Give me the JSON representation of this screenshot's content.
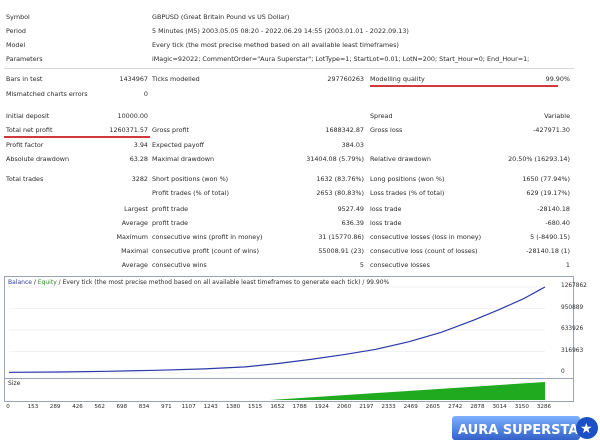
{
  "rows": [
    {
      "label": "Symbol",
      "value": "GBPUSD (Great Britain Pound vs US Dollar)"
    },
    {
      "label": "Period",
      "value": "5 Minutes (M5) 2003.05.05 08:20 - 2022.06.29 14:55 (2003.01.01 - 2022.09.13)"
    },
    {
      "label": "Model",
      "value": "Every tick (the most precise method based on all available least timeframes)"
    },
    {
      "label": "Parameters",
      "value": "iMagic=92022; CommentOrder=\"Aura Superstar\"; LotType=1; StartLot=0.01; LotN=200; Start_Hour=0; End_Hour=1;"
    }
  ],
  "stats": {
    "bars_label": "Bars in test",
    "bars_value": "1434967",
    "ticks_label": "Ticks modelled",
    "ticks_value": "297760263",
    "quality_label": "Modelling quality",
    "quality_value": "99.90%",
    "mismatch_label": "Mismatched charts errors",
    "mismatch_value": "0",
    "deposit_label": "Initial deposit",
    "deposit_value": "10000.00",
    "spread_label": "Spread",
    "spread_value": "Variable",
    "netprofit_label": "Total net profit",
    "netprofit_value": "1260371.57",
    "grossprofit_label": "Gross profit",
    "grossprofit_value": "1688342.87",
    "grossloss_label": "Gross loss",
    "grossloss_value": "-427971.30",
    "pf_label": "Profit factor",
    "pf_value": "3.94",
    "ep_label": "Expected payoff",
    "ep_value": "384.03",
    "absdd_label": "Absolute drawdown",
    "absdd_value": "63.28",
    "maxdd_label": "Maximal drawdown",
    "maxdd_value": "31404.08 (5.79%)",
    "reldd_label": "Relative drawdown",
    "reldd_value": "20.50% (16293.14)",
    "trades_label": "Total trades",
    "trades_value": "3282",
    "short_label": "Short positions (won %)",
    "short_value": "1632 (83.76%)",
    "long_label": "Long positions (won %)",
    "long_value": "1650 (77.94%)",
    "ptrades_label": "Profit trades (% of total)",
    "ptrades_value": "2653 (80.83%)",
    "ltrades_label": "Loss trades (% of total)",
    "ltrades_value": "629 (19.17%)",
    "largest_label": "Largest",
    "lp_label": "profit trade",
    "lp_value": "9527.49",
    "ll_label": "loss trade",
    "ll_value": "-28140.18",
    "average_label": "Average",
    "ap_label": "profit trade",
    "ap_value": "636.39",
    "al_label": "loss trade",
    "al_value": "-680.40",
    "maximum_label": "Maximum",
    "mcw_label": "consecutive wins (profit in money)",
    "mcw_value": "31 (15770.86)",
    "mcl_label": "consecutive losses (loss in money)",
    "mcl_value": "5 (-8490.15)",
    "maximal_label": "Maximal",
    "mcp_label": "consecutive profit (count of wins)",
    "mcp_value": "55008.91 (23)",
    "mclo_label": "consecutive loss (count of losses)",
    "mclo_value": "-28140.18 (1)",
    "average2_label": "Average",
    "acw_label": "consecutive wins",
    "acw_value": "5",
    "acl_label": "consecutive losses",
    "acl_value": "1"
  },
  "chart": {
    "legend_balance": "Balance",
    "legend_sep": " / ",
    "legend_equity": "Equity",
    "legend_rest": " / Every tick (the most precise method based on all available least timeframes to generate each tick) / 99.90%",
    "size_label": "Size",
    "balance_color": "#2c3aa8",
    "equity_color": "#2e8b2e",
    "volume_color": "#1faa1f"
  },
  "chart_data": {
    "type": "line",
    "yticks": [
      "1267862",
      "950889",
      "633926",
      "316963",
      "0"
    ],
    "xticks": [
      "0",
      "153",
      "289",
      "426",
      "562",
      "698",
      "834",
      "971",
      "1107",
      "1243",
      "1380",
      "1515",
      "1652",
      "1788",
      "1924",
      "2060",
      "2197",
      "2333",
      "2469",
      "2605",
      "2742",
      "2878",
      "3014",
      "3150",
      "3286"
    ],
    "ylim": [
      0,
      1267862
    ],
    "xlim": [
      0,
      3286
    ],
    "series": [
      {
        "name": "Balance",
        "x": [
          0,
          300,
          600,
          900,
          1200,
          1450,
          1650,
          1850,
          2050,
          2250,
          2450,
          2650,
          2850,
          3000,
          3150,
          3250,
          3286
        ],
        "y": [
          10000,
          15000,
          25000,
          40000,
          60000,
          90000,
          140000,
          200000,
          270000,
          350000,
          460000,
          600000,
          780000,
          930000,
          1090000,
          1220000,
          1267862
        ]
      }
    ],
    "volume": {
      "start": 1600,
      "max_at_end": 1
    }
  },
  "brand": {
    "text": "AURA SUPERSTAR",
    "star": "★"
  }
}
